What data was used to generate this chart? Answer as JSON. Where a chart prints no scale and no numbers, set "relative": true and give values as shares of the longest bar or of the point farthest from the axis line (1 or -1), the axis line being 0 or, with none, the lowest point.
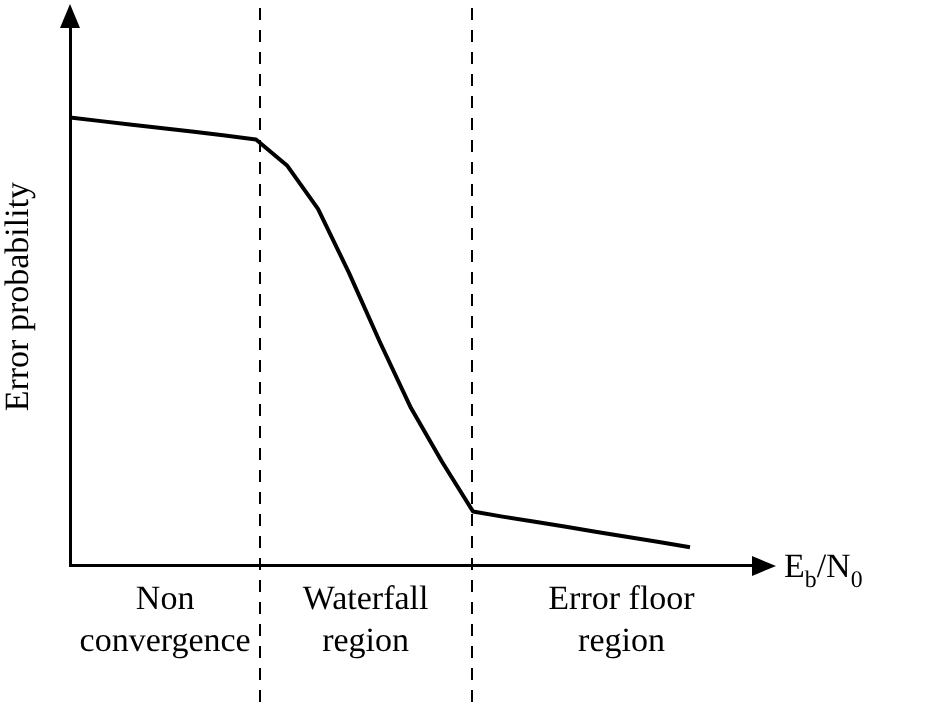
{
  "chart_data": {
    "type": "line",
    "ylabel": "Error probability",
    "xlabel": "E$_{b}$/N$_{0}$",
    "relative": true,
    "categories": [
      null,
      null,
      null,
      null,
      null,
      null,
      null,
      null,
      null,
      null,
      null,
      null,
      null,
      null,
      null,
      null,
      null,
      null,
      null,
      null,
      null,
      null,
      null
    ],
    "series": [
      {
        "color": "#000000",
        "values": [
          1,
          0.992,
          0.984,
          0.976,
          0.968,
          0.96,
          0.951,
          0.893,
          0.796,
          0.653,
          0.498,
          0.351,
          0.231,
          0.12,
          0.108,
          0.097,
          0.086,
          0.074,
          0.063,
          0.052,
          0.04,
          null,
          null
        ]
      }
    ],
    "annotations": [
      "Non convergence",
      "Waterfall region",
      "Error floor region"
    ],
    "legend": false,
    "grid": false,
    "marker": "none",
    "line_style": "solid"
  }
}
